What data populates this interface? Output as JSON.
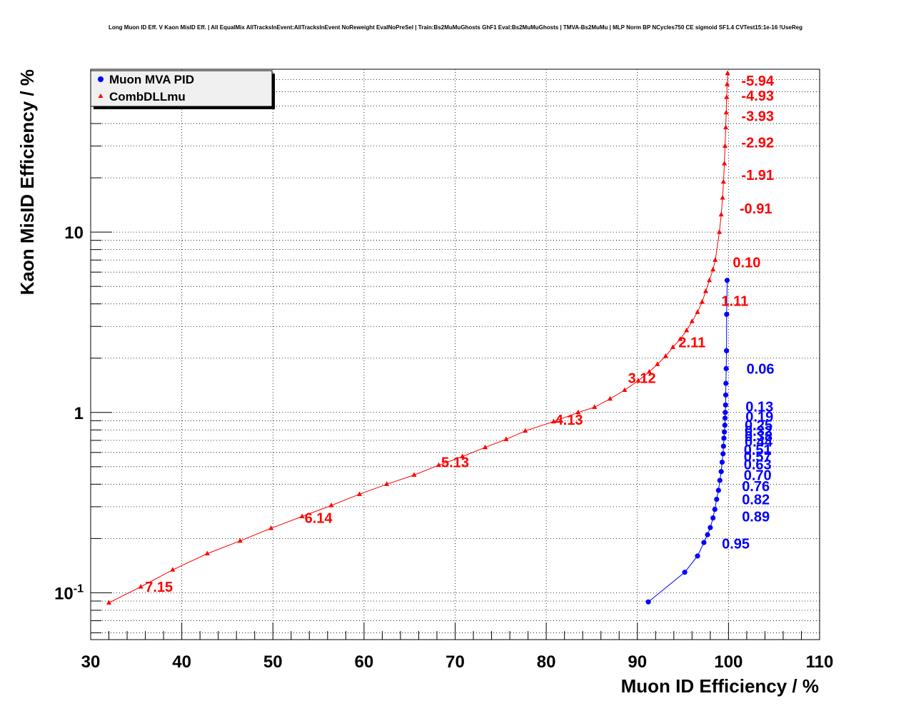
{
  "chart_data": {
    "type": "line",
    "title": "Long Muon ID Eff. V Kaon MisID Eff. | All EqualMix AllTracksInEvent:AllTracksInEvent NoReweight EvalNoPreSel | Train:Bs2MuMuGhosts GhF1 Eval:Bs2MuMuGhosts | TMVA-Bs2MuMu | MLP Norm BP NCycles750 CE sigmoid SF1.4 CVTest15:1e-16 !UseReg",
    "xlabel": "Muon ID Efficiency / %",
    "ylabel": "Kaon MisID Efficiency / %",
    "xlim": [
      30,
      110
    ],
    "ylim": [
      0.055,
      80
    ],
    "yscale": "log",
    "grid": true,
    "legend_position": "top-left",
    "x_ticks": [
      "30",
      "40",
      "50",
      "60",
      "70",
      "80",
      "90",
      "100",
      "110"
    ],
    "y_ticks": [
      {
        "value": 0.1,
        "base": "10",
        "exp": "-1"
      },
      {
        "value": 1,
        "base": "1",
        "exp": ""
      },
      {
        "value": 10,
        "base": "10",
        "exp": ""
      }
    ],
    "series": [
      {
        "name": "Muon MVA PID",
        "color": "#0000ff",
        "marker": "circle",
        "x": [
          91.2,
          95.2,
          96.6,
          97.3,
          97.7,
          98.0,
          98.3,
          98.5,
          98.7,
          98.9,
          99.05,
          99.2,
          99.3,
          99.4,
          99.45,
          99.5,
          99.55,
          99.6,
          99.62,
          99.65,
          99.68,
          99.7,
          99.72,
          99.75,
          99.78,
          99.8,
          99.85
        ],
        "y": [
          0.089,
          0.13,
          0.16,
          0.19,
          0.21,
          0.23,
          0.26,
          0.29,
          0.33,
          0.37,
          0.42,
          0.47,
          0.53,
          0.59,
          0.65,
          0.72,
          0.78,
          0.85,
          0.93,
          1.0,
          1.1,
          1.25,
          1.45,
          1.75,
          2.2,
          3.5,
          5.4
        ]
      },
      {
        "name": "CombDLLmu",
        "color": "#ff0000",
        "marker": "triangle",
        "x": [
          32,
          35.5,
          39,
          42.8,
          46.4,
          49.8,
          53.2,
          56.4,
          59.5,
          62.5,
          65.5,
          68.2,
          70.8,
          73.3,
          75.6,
          77.7,
          80.8,
          83.5,
          85.3,
          87.0,
          88.6,
          90.1,
          91.3,
          92.2,
          93.1,
          93.9,
          94.7,
          95.4,
          96.0,
          96.6,
          97.1,
          97.5,
          97.9,
          98.3,
          98.55,
          99.0,
          99.2,
          99.35,
          99.45,
          99.55,
          99.62,
          99.7,
          99.75,
          99.8,
          99.85,
          99.9
        ],
        "y": [
          0.088,
          0.108,
          0.134,
          0.165,
          0.194,
          0.228,
          0.265,
          0.305,
          0.352,
          0.4,
          0.45,
          0.51,
          0.57,
          0.64,
          0.71,
          0.79,
          0.89,
          1.0,
          1.07,
          1.19,
          1.33,
          1.5,
          1.68,
          1.85,
          2.05,
          2.3,
          2.55,
          2.85,
          3.2,
          3.6,
          4.1,
          4.7,
          5.4,
          6.2,
          7.0,
          10.0,
          12.5,
          15.5,
          19.0,
          24.0,
          30.0,
          38.0,
          46.0,
          56.0,
          66.0,
          76.0
        ]
      }
    ],
    "annotations": [
      {
        "text": "-5.94",
        "x": 103.2,
        "y": 69.0,
        "color": "#ff0000"
      },
      {
        "text": "-4.93",
        "x": 103.2,
        "y": 57.0,
        "color": "#ff0000"
      },
      {
        "text": "-3.93",
        "x": 103.2,
        "y": 44.0,
        "color": "#ff0000"
      },
      {
        "text": "-2.92",
        "x": 103.2,
        "y": 31.5,
        "color": "#ff0000"
      },
      {
        "text": "-1.91",
        "x": 103.2,
        "y": 20.8,
        "color": "#ff0000"
      },
      {
        "text": "-0.91",
        "x": 103.0,
        "y": 13.5,
        "color": "#ff0000"
      },
      {
        "text": "0.10",
        "x": 102.0,
        "y": 6.8,
        "color": "#ff0000"
      },
      {
        "text": "1.11",
        "x": 100.7,
        "y": 4.15,
        "color": "#ff0000"
      },
      {
        "text": "2.11",
        "x": 96.0,
        "y": 2.45,
        "color": "#ff0000"
      },
      {
        "text": "3.12",
        "x": 90.5,
        "y": 1.55,
        "color": "#ff0000"
      },
      {
        "text": "4.13",
        "x": 82.5,
        "y": 0.91,
        "color": "#ff0000"
      },
      {
        "text": "5.13",
        "x": 70.0,
        "y": 0.53,
        "color": "#ff0000"
      },
      {
        "text": "6.14",
        "x": 55.0,
        "y": 0.26,
        "color": "#ff0000"
      },
      {
        "text": "7.15",
        "x": 37.5,
        "y": 0.108,
        "color": "#ff0000"
      },
      {
        "text": "0.06",
        "x": 103.5,
        "y": 1.75,
        "color": "#0000ff"
      },
      {
        "text": "0.13",
        "x": 103.4,
        "y": 1.08,
        "color": "#0000ff"
      },
      {
        "text": "0.19",
        "x": 103.4,
        "y": 0.95,
        "color": "#0000ff"
      },
      {
        "text": "0.25",
        "x": 103.3,
        "y": 0.85,
        "color": "#0000ff"
      },
      {
        "text": "0.32",
        "x": 103.3,
        "y": 0.79,
        "color": "#0000ff"
      },
      {
        "text": "0.38",
        "x": 103.3,
        "y": 0.74,
        "color": "#0000ff"
      },
      {
        "text": "0.44",
        "x": 103.3,
        "y": 0.69,
        "color": "#0000ff"
      },
      {
        "text": "0.51",
        "x": 103.2,
        "y": 0.62,
        "color": "#0000ff"
      },
      {
        "text": "0.57",
        "x": 103.2,
        "y": 0.57,
        "color": "#0000ff"
      },
      {
        "text": "0.63",
        "x": 103.2,
        "y": 0.515,
        "color": "#0000ff"
      },
      {
        "text": "0.70",
        "x": 103.2,
        "y": 0.45,
        "color": "#0000ff"
      },
      {
        "text": "0.76",
        "x": 103.0,
        "y": 0.39,
        "color": "#0000ff"
      },
      {
        "text": "0.82",
        "x": 103.0,
        "y": 0.33,
        "color": "#0000ff"
      },
      {
        "text": "0.89",
        "x": 103.0,
        "y": 0.265,
        "color": "#0000ff"
      },
      {
        "text": "0.95",
        "x": 100.8,
        "y": 0.187,
        "color": "#0000ff"
      }
    ]
  }
}
